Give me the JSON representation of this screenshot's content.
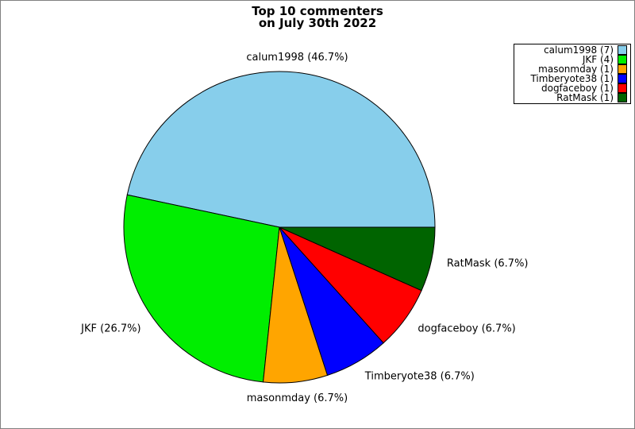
{
  "title": {
    "line1": "Top 10 commenters",
    "line2": "on July 30th 2022"
  },
  "canvas": {
    "background": "#ffffff",
    "border_color": "#808080"
  },
  "chart_data": {
    "type": "pie",
    "title": "Top 10 commenters on July 30th 2022",
    "total": 15,
    "start_angle_deg": 0,
    "direction": "counterclockwise",
    "slice_outline_color": "#000000",
    "legend_position": "top-right",
    "slices": [
      {
        "name": "calum1998",
        "count": 7,
        "percent": 46.7,
        "label": "calum1998 (46.7%)",
        "legend_label": "calum1998 (7)",
        "color": "#87CEEB"
      },
      {
        "name": "JKF",
        "count": 4,
        "percent": 26.7,
        "label": "JKF (26.7%)",
        "legend_label": "JKF (4)",
        "color": "#00EE00"
      },
      {
        "name": "masonmday",
        "count": 1,
        "percent": 6.7,
        "label": "masonmday (6.7%)",
        "legend_label": "masonmday (1)",
        "color": "#FFA500"
      },
      {
        "name": "Timberyote38",
        "count": 1,
        "percent": 6.7,
        "label": "Timberyote38 (6.7%)",
        "legend_label": "Timberyote38 (1)",
        "color": "#0000FF"
      },
      {
        "name": "dogfaceboy",
        "count": 1,
        "percent": 6.7,
        "label": "dogfaceboy (6.7%)",
        "legend_label": "dogfaceboy (1)",
        "color": "#FF0000"
      },
      {
        "name": "RatMask",
        "count": 1,
        "percent": 6.7,
        "label": "RatMask (6.7%)",
        "legend_label": "RatMask (1)",
        "color": "#006400"
      }
    ]
  }
}
